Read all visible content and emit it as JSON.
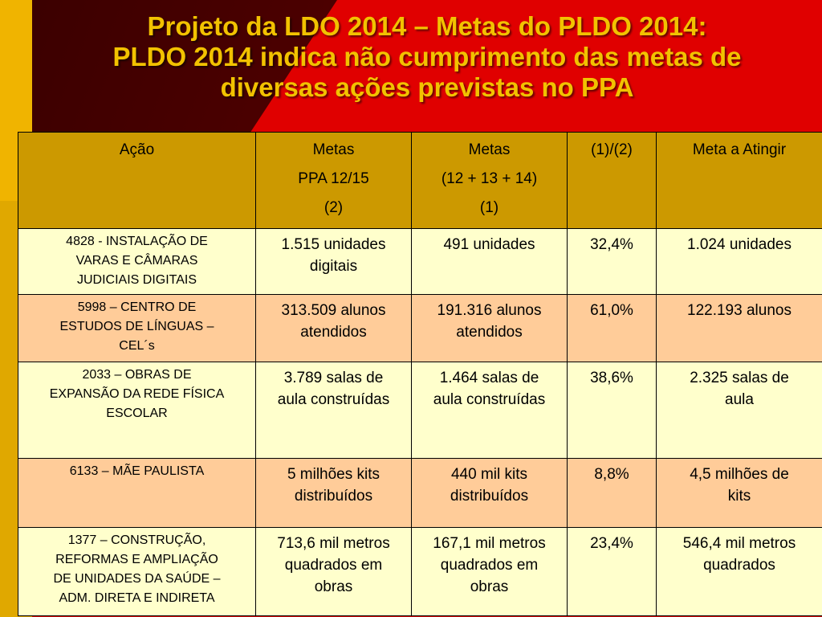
{
  "slide": {
    "title_lines": [
      "Projeto da LDO 2014 – Metas do PLDO 2014:",
      "PLDO 2014 indica não cumprimento das metas de",
      "diversas ações previstas no PPA"
    ]
  },
  "table": {
    "headers": [
      {
        "lines": [
          "Ação"
        ]
      },
      {
        "lines": [
          "Metas",
          "PPA 12/15",
          "(2)"
        ]
      },
      {
        "lines": [
          "Metas",
          "(12 + 13 + 14)",
          "(1)"
        ]
      },
      {
        "lines": [
          "(1)/(2)"
        ]
      },
      {
        "lines": [
          "Meta a Atingir"
        ]
      }
    ],
    "rows": [
      {
        "acao": [
          "4828 - INSTALAÇÃO DE",
          "VARAS E CÂMARAS",
          "JUDICIAIS DIGITAIS"
        ],
        "metas_ppa": [
          "1.515 unidades",
          "digitais"
        ],
        "metas_realizadas": [
          "491 unidades"
        ],
        "percentual": "32,4%",
        "meta_a_atingir": [
          "1.024 unidades"
        ]
      },
      {
        "acao": [
          "5998 – CENTRO DE",
          "ESTUDOS DE LÍNGUAS –",
          "CEL´s"
        ],
        "metas_ppa": [
          "313.509 alunos",
          "atendidos"
        ],
        "metas_realizadas": [
          "191.316 alunos",
          "atendidos"
        ],
        "percentual": "61,0%",
        "meta_a_atingir": [
          "122.193 alunos"
        ]
      },
      {
        "acao": [
          "2033 – OBRAS DE",
          "EXPANSÃO DA REDE FÍSICA",
          "ESCOLAR"
        ],
        "metas_ppa": [
          "3.789 salas de",
          "aula construídas"
        ],
        "metas_realizadas": [
          "1.464 salas de",
          "aula construídas"
        ],
        "percentual": "38,6%",
        "meta_a_atingir": [
          "2.325 salas de",
          "aula"
        ]
      },
      {
        "acao": [
          "6133 – MÃE PAULISTA"
        ],
        "metas_ppa": [
          "5 milhões kits",
          "distribuídos"
        ],
        "metas_realizadas": [
          "440 mil kits",
          "distribuídos"
        ],
        "percentual": "8,8%",
        "meta_a_atingir": [
          "4,5 milhões de",
          "kits"
        ]
      },
      {
        "acao": [
          "1377 – CONSTRUÇÃO,",
          "REFORMAS E AMPLIAÇÃO",
          "DE UNIDADES DA SAÚDE –",
          "ADM. DIRETA E INDIRETA"
        ],
        "metas_ppa": [
          "713,6 mil metros",
          "quadrados em",
          "obras"
        ],
        "metas_realizadas": [
          "167,1 mil metros",
          "quadrados em",
          "obras"
        ],
        "percentual": "23,4%",
        "meta_a_atingir": [
          "546,4 mil metros",
          "quadrados"
        ]
      }
    ]
  },
  "colors": {
    "title": "#f2c200",
    "header_bg": "#cc9900",
    "row_light": "#ffffcc",
    "row_dark": "#ffcc99",
    "bg_dark_red": "#4a0000",
    "bg_red": "#e00000",
    "bg_yellow": "#f0b400"
  }
}
